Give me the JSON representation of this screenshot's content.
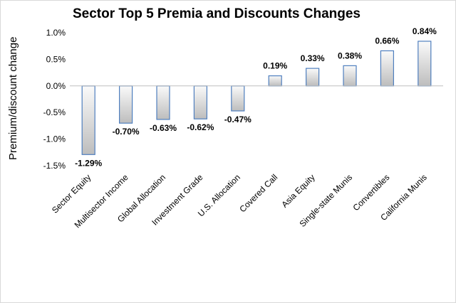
{
  "chart_data": {
    "type": "bar",
    "title": "Sector Top 5 Premia and Discounts Changes",
    "xlabel": "",
    "ylabel": "Premium/discount change",
    "categories": [
      "Sector Equity",
      "Multisector Income",
      "Global Allocation",
      "Investment Grade",
      "U.S. Allocation",
      "Covered Call",
      "Asia Equity",
      "Single-state Munis",
      "Convertibles",
      "California Munis"
    ],
    "values": [
      -1.29,
      -0.7,
      -0.63,
      -0.62,
      -0.47,
      0.19,
      0.33,
      0.38,
      0.66,
      0.84
    ],
    "data_labels": [
      "-1.29%",
      "-0.70%",
      "-0.63%",
      "-0.62%",
      "-0.47%",
      "0.19%",
      "0.33%",
      "0.38%",
      "0.66%",
      "0.84%"
    ],
    "yticks": [
      1.0,
      0.5,
      0.0,
      -0.5,
      -1.0,
      -1.5
    ],
    "ytick_labels": [
      "1.0%",
      "0.5%",
      "0.0%",
      "-0.5%",
      "-1.0%",
      "-1.5%"
    ],
    "ylim": [
      -1.5,
      1.0
    ],
    "grid": false,
    "legend": "none",
    "colors": {
      "bar_fill_light": "#fafafa",
      "bar_fill_dark": "#bdbdbd",
      "bar_stroke": "#4f7fbf",
      "axis": "#bfbfbf"
    }
  }
}
